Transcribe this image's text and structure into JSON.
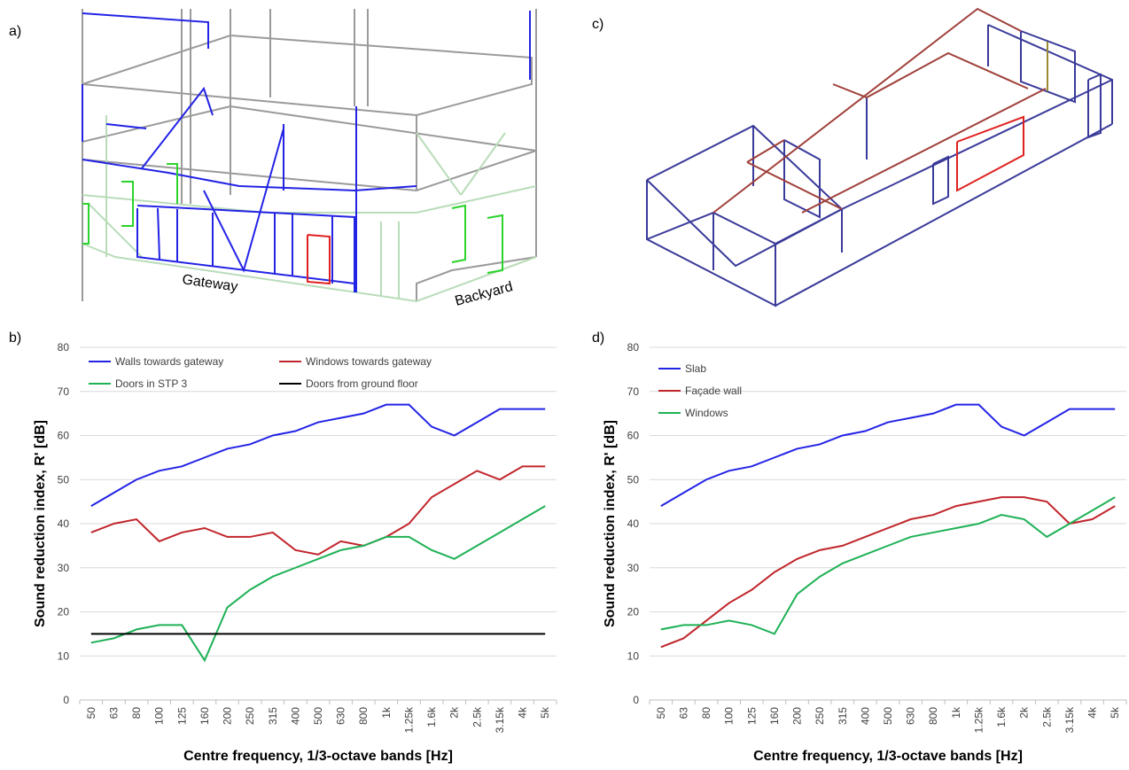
{
  "panels": {
    "a": "a)",
    "b": "b)",
    "c": "c)",
    "d": "d)"
  },
  "labels": {
    "gateway": "Gateway",
    "backyard": "Backyard"
  },
  "chart_data": [
    {
      "type": "line",
      "xlabel": "Centre frequency, 1/3-octave bands [Hz]",
      "ylabel": "Sound reduction index, R' [dB]",
      "categories": [
        "50",
        "63",
        "80",
        "100",
        "125",
        "160",
        "200",
        "250",
        "315",
        "400",
        "500",
        "630",
        "800",
        "1k",
        "1.25k",
        "1.6k",
        "2k",
        "2.5k",
        "3.15k",
        "4k",
        "5k"
      ],
      "ylim": [
        0,
        80
      ],
      "yticks": [
        0,
        10,
        20,
        30,
        40,
        50,
        60,
        70,
        80
      ],
      "grid": true,
      "legend_columns": 2,
      "series": [
        {
          "name": "Walls towards gateway",
          "color": "#2323e6",
          "values": [
            44,
            47,
            50,
            52,
            53,
            55,
            57,
            58,
            60,
            61,
            63,
            64,
            65,
            67,
            67,
            62,
            60,
            63,
            66,
            66,
            66
          ]
        },
        {
          "name": "Windows towards gateway",
          "color": "#c0262c",
          "values": [
            38,
            40,
            41,
            36,
            38,
            39,
            37,
            37,
            38,
            34,
            33,
            36,
            35,
            37,
            40,
            46,
            49,
            52,
            50,
            53,
            53
          ]
        },
        {
          "name": "Doors in STP 3",
          "color": "#1fb156",
          "values": [
            13,
            14,
            16,
            17,
            17,
            9,
            21,
            25,
            28,
            30,
            32,
            34,
            35,
            37,
            37,
            34,
            32,
            35,
            38,
            41,
            44
          ]
        },
        {
          "name": "Doors from ground floor",
          "color": "#000000",
          "values": [
            15,
            15,
            15,
            15,
            15,
            15,
            15,
            15,
            15,
            15,
            15,
            15,
            15,
            15,
            15,
            15,
            15,
            15,
            15,
            15,
            15
          ]
        }
      ]
    },
    {
      "type": "line",
      "xlabel": "Centre frequency, 1/3-octave bands [Hz]",
      "ylabel": "Sound reduction index, R' [dB]",
      "categories": [
        "50",
        "63",
        "80",
        "100",
        "125",
        "160",
        "200",
        "250",
        "315",
        "400",
        "500",
        "630",
        "800",
        "1k",
        "1.25k",
        "1.6k",
        "2k",
        "2.5k",
        "3.15k",
        "4k",
        "5k"
      ],
      "ylim": [
        0,
        80
      ],
      "yticks": [
        0,
        10,
        20,
        30,
        40,
        50,
        60,
        70,
        80
      ],
      "grid": true,
      "legend_columns": 1,
      "series": [
        {
          "name": "Slab",
          "color": "#2323e6",
          "values": [
            44,
            47,
            50,
            52,
            53,
            55,
            57,
            58,
            60,
            61,
            63,
            64,
            65,
            67,
            67,
            62,
            60,
            63,
            66,
            66,
            66
          ]
        },
        {
          "name": "Façade wall",
          "color": "#c0262c",
          "values": [
            12,
            14,
            18,
            22,
            25,
            29,
            32,
            34,
            35,
            37,
            39,
            41,
            42,
            44,
            45,
            46,
            46,
            45,
            40,
            41,
            44
          ]
        },
        {
          "name": "Windows",
          "color": "#1fb156",
          "values": [
            16,
            17,
            17,
            18,
            17,
            15,
            24,
            28,
            31,
            33,
            35,
            37,
            38,
            39,
            40,
            42,
            41,
            37,
            40,
            43,
            46
          ]
        }
      ]
    }
  ]
}
